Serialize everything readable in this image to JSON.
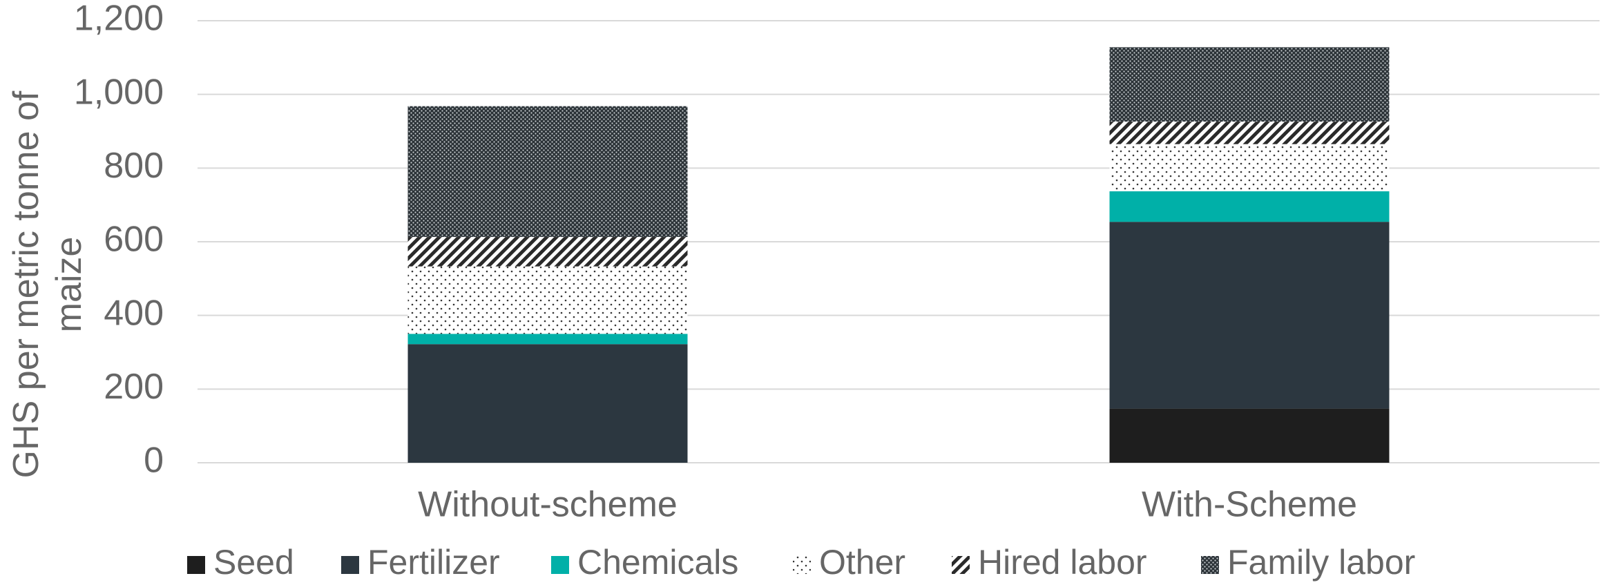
{
  "chart_data": {
    "type": "stacked-bar",
    "y_label": "GHS per metric tonne of maize",
    "categories": [
      "Without-scheme",
      "With-Scheme"
    ],
    "series": [
      {
        "name": "Seed",
        "color": "#1e1e1e",
        "values": [
          0,
          147
        ]
      },
      {
        "name": "Fertilizer",
        "color": "#2c3740",
        "values": [
          322,
          507
        ]
      },
      {
        "name": "Chemicals",
        "color": "#00b0a8",
        "values": [
          28,
          83
        ]
      },
      {
        "name": "Other",
        "color": "#222222",
        "pattern": "dots",
        "values": [
          183,
          128
        ]
      },
      {
        "name": "Hired labor",
        "color": "#222222",
        "pattern": "hatch",
        "values": [
          80,
          61
        ]
      },
      {
        "name": "Family labor",
        "color": "#222222",
        "pattern": "dense-dots",
        "values": [
          355,
          202
        ]
      }
    ],
    "ylim": [
      0,
      1200
    ],
    "yticks": [
      0,
      200,
      400,
      600,
      800,
      {
        "value": 1000,
        "label": "1,000"
      },
      {
        "value": 1200,
        "label": "1,200"
      }
    ],
    "grid": true,
    "legend": "bottom"
  }
}
